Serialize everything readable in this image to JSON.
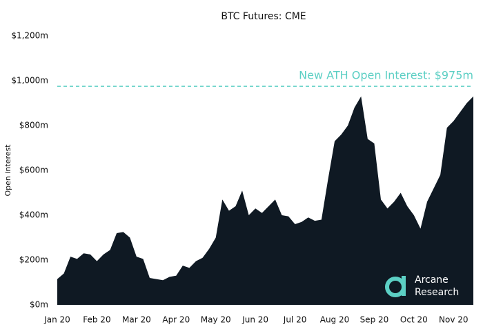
{
  "chart_data": {
    "type": "area",
    "title": "BTC Futures: CME",
    "y_label": "Open interest",
    "categories": [
      "Jan 20",
      null,
      null,
      null,
      null,
      null,
      "Feb 20",
      null,
      null,
      null,
      null,
      null,
      "Mar 20",
      null,
      null,
      null,
      null,
      null,
      "Apr 20",
      null,
      null,
      null,
      null,
      null,
      "May 20",
      null,
      null,
      null,
      null,
      null,
      "Jun 20",
      null,
      null,
      null,
      null,
      null,
      "Jul 20",
      null,
      null,
      null,
      null,
      null,
      "Aug 20",
      null,
      null,
      null,
      null,
      null,
      "Sep 20",
      null,
      null,
      null,
      null,
      null,
      "Oct 20",
      null,
      null,
      null,
      null,
      null,
      "Nov 20",
      null,
      null,
      null
    ],
    "values": [
      115,
      140,
      215,
      205,
      230,
      225,
      195,
      225,
      245,
      320,
      325,
      300,
      215,
      205,
      120,
      115,
      110,
      125,
      130,
      175,
      165,
      195,
      210,
      250,
      300,
      470,
      420,
      440,
      510,
      400,
      430,
      410,
      440,
      470,
      400,
      395,
      360,
      370,
      390,
      375,
      380,
      560,
      730,
      760,
      800,
      880,
      930,
      740,
      720,
      470,
      430,
      460,
      500,
      440,
      400,
      340,
      460,
      520,
      580,
      790,
      820,
      860,
      900,
      930
    ],
    "color": "#0f1923",
    "ylim": [
      0,
      1200
    ],
    "yticks": [
      {
        "value": 0,
        "label": "$0m"
      },
      {
        "value": 200,
        "label": "$200m"
      },
      {
        "value": 400,
        "label": "$400m"
      },
      {
        "value": 600,
        "label": "$600m"
      },
      {
        "value": 800,
        "label": "$800m"
      },
      {
        "value": 1000,
        "label": "$1,000m"
      },
      {
        "value": 1200,
        "label": "$1,200m"
      }
    ],
    "grid": false,
    "annotation": {
      "text": "New ATH Open Interest: $975m",
      "value": 975,
      "color": "#5ccfc4"
    }
  },
  "watermark": {
    "lines": [
      "Arcane",
      "Research"
    ]
  }
}
